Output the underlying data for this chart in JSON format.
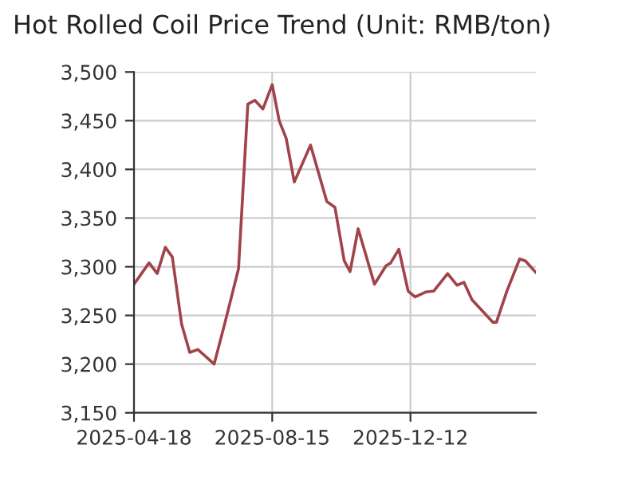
{
  "chart_data": {
    "type": "line",
    "title": "Hot Rolled Coil Price Trend (Unit: RMB/ton)",
    "x": [
      "2025-04-18",
      "2025-05-01",
      "2025-05-08",
      "2025-05-15",
      "2025-05-21",
      "2025-05-29",
      "2025-06-05",
      "2025-06-12",
      "2025-06-26",
      "2025-07-05",
      "2025-07-17",
      "2025-07-25",
      "2025-07-31",
      "2025-08-07",
      "2025-08-15",
      "2025-08-21",
      "2025-08-27",
      "2025-09-03",
      "2025-09-17",
      "2025-10-01",
      "2025-10-08",
      "2025-10-16",
      "2025-10-21",
      "2025-10-28",
      "2025-11-11",
      "2025-11-21",
      "2025-11-25",
      "2025-12-02",
      "2025-12-10",
      "2025-12-16",
      "2025-12-25",
      "2026-01-01",
      "2026-01-13",
      "2026-01-21",
      "2026-01-27",
      "2026-02-03",
      "2026-02-21",
      "2026-02-24",
      "2026-03-05",
      "2026-03-16",
      "2026-03-21",
      "2026-03-30"
    ],
    "series": [
      {
        "color": "#a0434a",
        "values": [
          3282,
          3304,
          3293,
          3320,
          3310,
          3241,
          3212,
          3215,
          3200,
          3241,
          3298,
          3467,
          3471,
          3462,
          3487,
          3450,
          3432,
          3387,
          3425,
          3367,
          3361,
          3306,
          3295,
          3339,
          3282,
          3301,
          3304,
          3318,
          3275,
          3269,
          3274,
          3275,
          3293,
          3281,
          3284,
          3266,
          3243,
          3243,
          3275,
          3308,
          3306,
          3294
        ]
      }
    ],
    "xlim": [
      "2025-04-18",
      "2026-03-30"
    ],
    "xticks": [
      "2025-04-18",
      "2025-08-15",
      "2025-12-12"
    ],
    "ylim": [
      3150,
      3500
    ],
    "yticks": [
      {
        "value": 3150,
        "label": "3,150"
      },
      {
        "value": 3200,
        "label": "3,200"
      },
      {
        "value": 3250,
        "label": "3,250"
      },
      {
        "value": 3300,
        "label": "3,300"
      },
      {
        "value": 3350,
        "label": "3,350"
      },
      {
        "value": 3400,
        "label": "3,400"
      },
      {
        "value": 3450,
        "label": "3,450"
      },
      {
        "value": 3500,
        "label": "3,500"
      }
    ],
    "grid": true,
    "legend": false
  }
}
